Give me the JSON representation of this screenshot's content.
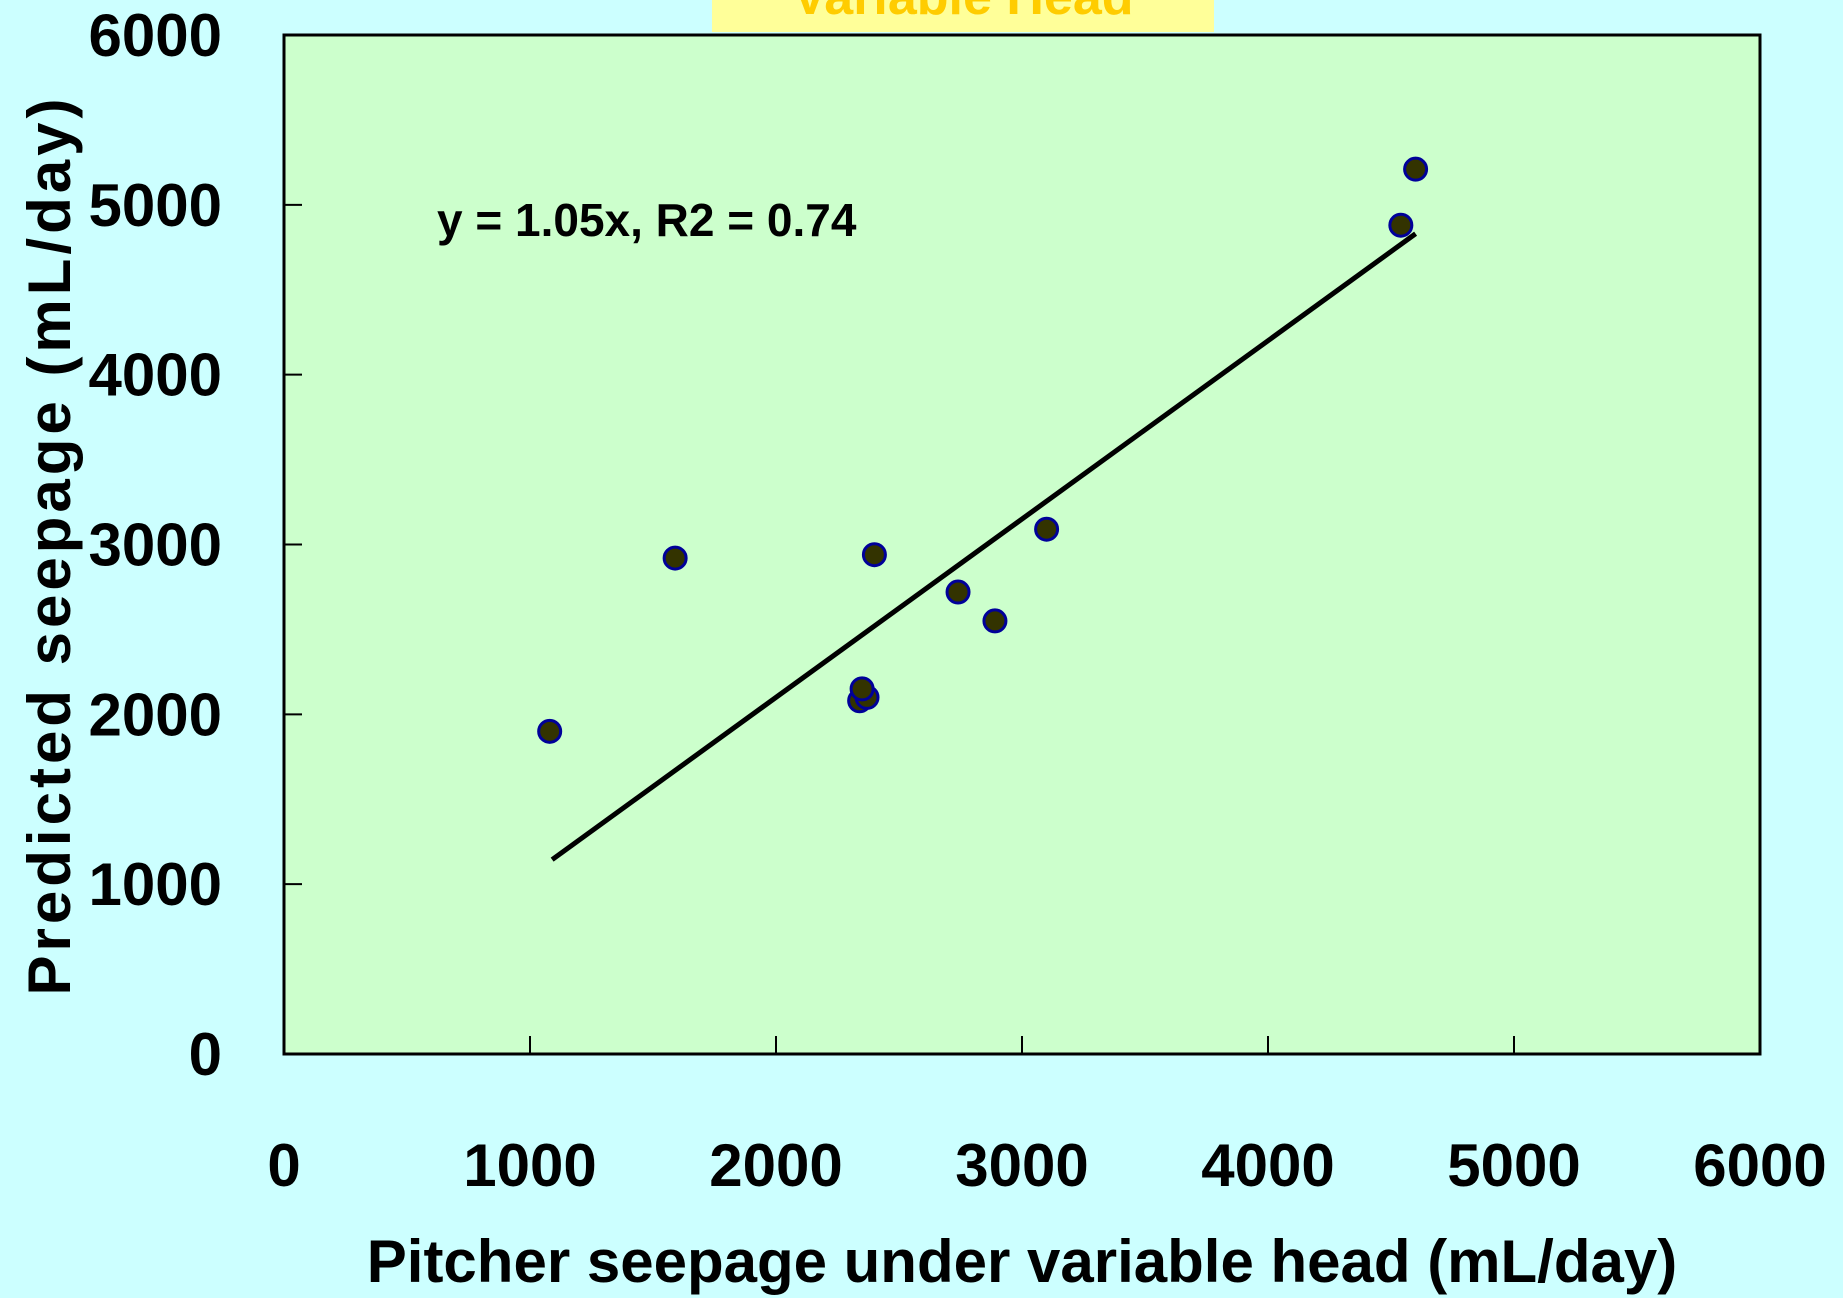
{
  "chart_data": {
    "type": "scatter",
    "title": "Variable Head",
    "xlabel": "Pitcher seepage under variable head (mL/day)",
    "ylabel": "Predicted seepage (mL/day)",
    "xlim": [
      0,
      6000
    ],
    "ylim": [
      0,
      6000
    ],
    "x_ticks": [
      0,
      1000,
      2000,
      3000,
      4000,
      5000,
      6000
    ],
    "y_ticks": [
      0,
      1000,
      2000,
      3000,
      4000,
      5000,
      6000
    ],
    "grid": false,
    "series": [
      {
        "points": [
          {
            "x": 1080,
            "y": 1900
          },
          {
            "x": 1590,
            "y": 2920
          },
          {
            "x": 2340,
            "y": 2080
          },
          {
            "x": 2370,
            "y": 2100
          },
          {
            "x": 2350,
            "y": 2150
          },
          {
            "x": 2400,
            "y": 2940
          },
          {
            "x": 2740,
            "y": 2720
          },
          {
            "x": 2890,
            "y": 2550
          },
          {
            "x": 3100,
            "y": 3090
          },
          {
            "x": 4540,
            "y": 4880
          },
          {
            "x": 4600,
            "y": 5210
          }
        ]
      }
    ],
    "trendline": {
      "equation": "y = 1.05x, R2 = 0.74",
      "slope": 1.05,
      "x_range": [
        1090,
        4600
      ]
    },
    "colors": {
      "page_background": "#ccffff",
      "plot_background": "#ccffcc",
      "title_box": "#ffff99",
      "title_text": "#ffcc00",
      "marker_fill": "#333300",
      "marker_edge": "#000099",
      "line": "#000000"
    }
  }
}
